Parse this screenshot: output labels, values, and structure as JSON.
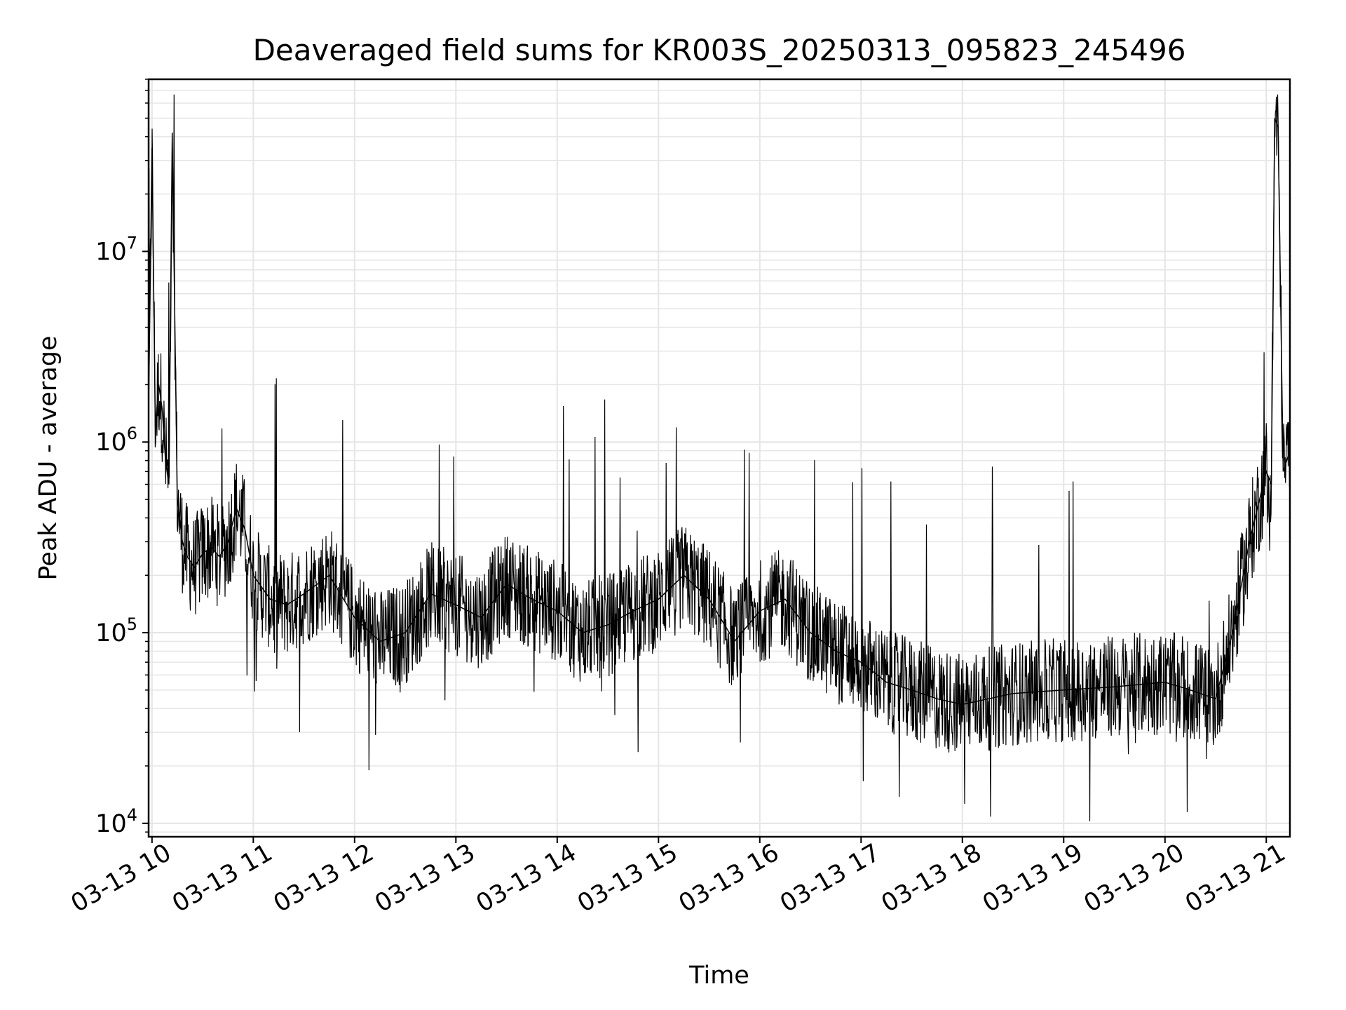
{
  "chart_data": {
    "type": "line",
    "title": "Deaveraged field sums for KR003S_20250313_095823_245496",
    "xlabel": "Time",
    "ylabel": "Peak ADU - average",
    "yscale": "log",
    "ylim": [
      8500,
      80000000
    ],
    "xlim": [
      "03-13 09:58",
      "03-13 21:14"
    ],
    "grid": true,
    "line_color": "#000000",
    "grid_color": "#e5e5e5",
    "x_ticks": [
      "03-13 10",
      "03-13 11",
      "03-13 12",
      "03-13 13",
      "03-13 14",
      "03-13 15",
      "03-13 16",
      "03-13 17",
      "03-13 18",
      "03-13 19",
      "03-13 20",
      "03-13 21"
    ],
    "y_ticks": [
      {
        "value": 10000,
        "base": "10",
        "exp": "4"
      },
      {
        "value": 100000,
        "base": "10",
        "exp": "5"
      },
      {
        "value": 1000000,
        "base": "10",
        "exp": "6"
      },
      {
        "value": 10000000,
        "base": "10",
        "exp": "7"
      }
    ],
    "series": [
      {
        "x": [
          "03-13 09:58",
          "03-13 10:00",
          "03-13 10:02",
          "03-13 10:04",
          "03-13 10:06",
          "03-13 10:08",
          "03-13 10:10",
          "03-13 10:12",
          "03-13 10:15",
          "03-13 10:18",
          "03-13 10:21",
          "03-13 10:25",
          "03-13 10:30",
          "03-13 10:35",
          "03-13 10:40",
          "03-13 10:45",
          "03-13 10:50",
          "03-13 10:55",
          "03-13 11:00",
          "03-13 11:10",
          "03-13 11:20",
          "03-13 11:30",
          "03-13 11:45",
          "03-13 12:00",
          "03-13 12:15",
          "03-13 12:30",
          "03-13 12:45",
          "03-13 13:00",
          "03-13 13:15",
          "03-13 13:30",
          "03-13 13:45",
          "03-13 14:00",
          "03-13 14:15",
          "03-13 14:30",
          "03-13 14:45",
          "03-13 15:00",
          "03-13 15:15",
          "03-13 15:30",
          "03-13 15:45",
          "03-13 16:00",
          "03-13 16:15",
          "03-13 16:30",
          "03-13 16:45",
          "03-13 17:00",
          "03-13 17:15",
          "03-13 17:30",
          "03-13 17:45",
          "03-13 18:00",
          "03-13 18:30",
          "03-13 19:00",
          "03-13 19:30",
          "03-13 20:00",
          "03-13 20:15",
          "03-13 20:30",
          "03-13 20:40",
          "03-13 20:50",
          "03-13 21:00",
          "03-13 21:03",
          "03-13 21:05",
          "03-13 21:07",
          "03-13 21:10",
          "03-13 21:14"
        ],
        "y": [
          1500000,
          35000000,
          1200000,
          2000000,
          1500000,
          800000,
          600000,
          42000000,
          500000,
          300000,
          250000,
          220000,
          260000,
          280000,
          250000,
          300000,
          450000,
          350000,
          200000,
          150000,
          140000,
          160000,
          200000,
          120000,
          90000,
          100000,
          160000,
          140000,
          120000,
          180000,
          150000,
          130000,
          100000,
          110000,
          130000,
          150000,
          200000,
          150000,
          90000,
          130000,
          150000,
          100000,
          80000,
          70000,
          55000,
          50000,
          45000,
          42000,
          48000,
          50000,
          52000,
          55000,
          50000,
          45000,
          100000,
          300000,
          700000,
          600000,
          50000000,
          45000000,
          700000,
          900000
        ]
      }
    ]
  }
}
